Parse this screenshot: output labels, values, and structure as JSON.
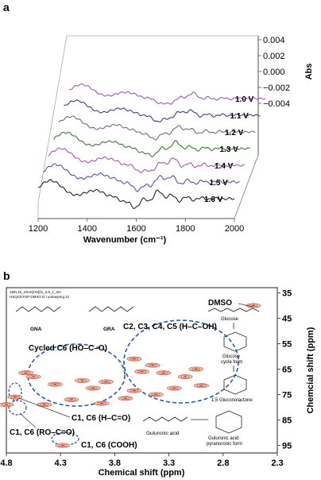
{
  "chart_data": [
    {
      "panel": "a",
      "type": "line",
      "xlabel": "Wavenumber (cm⁻¹)",
      "xticks": [
        1200,
        1400,
        1600,
        1800,
        2000
      ],
      "xlim": [
        1200,
        2000
      ],
      "zlabel": "Abs",
      "zticks": [
        "0.004",
        "0.002",
        "0.000",
        "−0.002",
        "−0.004"
      ],
      "zlim": [
        -0.004,
        0.004
      ],
      "series": [
        {
          "name": "1.6 V",
          "label": "1.6 V",
          "color": "#222222"
        },
        {
          "name": "1.5 V",
          "label": "1.5 V",
          "color": "#4a5aa0"
        },
        {
          "name": "1.4 V",
          "label": "1.4 V",
          "color": "#a35aa8"
        },
        {
          "name": "1.3 V",
          "label": "1.3 V",
          "color": "#3f7a35"
        },
        {
          "name": "1.2 V",
          "label": "1.2 V",
          "color": "#6c6c78"
        },
        {
          "name": "1.1 V",
          "label": "1.1 V",
          "color": "#3a3f78"
        },
        {
          "name": "1.0 V",
          "label": "1.0 V",
          "color": "#9a5bb0"
        }
      ]
    },
    {
      "panel": "b",
      "type": "heatmap",
      "xlabel": "Chemical shift (ppm)",
      "ylabel": "Chemcial shift (ppm)",
      "xticks": [
        "4.8",
        "4.3",
        "3.8",
        "3.3",
        "2.8",
        "2.3"
      ],
      "yticks": [
        "35",
        "45",
        "55",
        "65",
        "75",
        "85",
        "95"
      ],
      "xlim": [
        4.8,
        2.3
      ],
      "ylim": [
        33,
        98
      ],
      "header_lines": [
        "1MIL19_10cm[HX]01_5.6_1_2m",
        "HSQCETGP DMSO D:\\ yuhanping 21"
      ],
      "annotations": {
        "dmso": "DMSO",
        "c2c5": "C2, C3, C4, C5 (H–C–OH)",
        "cycled": "Cycled C6 (HO–C–O)",
        "c1c6_hco": "C1, C6 (H–C=O)",
        "c1c6_roco": "C1, C6 (RO–C=O)",
        "c1c6_cooh": "C1, C6 (COOH)"
      },
      "molecules": {
        "gna": "GNA",
        "gra": "GRA",
        "glucose": "Glucose",
        "glucose_cycle_1": "Glucose",
        "glucose_cycle_2": "cycle form",
        "gluconolactone": "1,5 Gluconolactone",
        "guluronic": "Guluronic acid",
        "guluronic_pyr_1": "Guluronic acid",
        "guluronic_pyr_2": "pyranuronic form"
      },
      "peaks": [
        {
          "x": 2.52,
          "y": 40.0
        },
        {
          "x": 4.62,
          "y": 66.5
        },
        {
          "x": 4.55,
          "y": 68.0
        },
        {
          "x": 4.35,
          "y": 71.0
        },
        {
          "x": 4.1,
          "y": 69.5
        },
        {
          "x": 4.0,
          "y": 72.5
        },
        {
          "x": 3.88,
          "y": 70.0
        },
        {
          "x": 3.62,
          "y": 61.0
        },
        {
          "x": 3.45,
          "y": 63.5
        },
        {
          "x": 3.55,
          "y": 66.0
        },
        {
          "x": 3.35,
          "y": 66.5
        },
        {
          "x": 3.15,
          "y": 68.0
        },
        {
          "x": 3.05,
          "y": 65.0
        },
        {
          "x": 3.0,
          "y": 71.5
        },
        {
          "x": 3.25,
          "y": 72.5
        },
        {
          "x": 3.62,
          "y": 73.5
        },
        {
          "x": 3.42,
          "y": 75.0
        },
        {
          "x": 3.7,
          "y": 76.5
        },
        {
          "x": 3.92,
          "y": 78.5
        },
        {
          "x": 4.2,
          "y": 77.0
        },
        {
          "x": 4.45,
          "y": 79.0
        },
        {
          "x": 4.72,
          "y": 76.0
        },
        {
          "x": 4.8,
          "y": 79.0
        },
        {
          "x": 4.28,
          "y": 95.0
        }
      ]
    }
  ]
}
